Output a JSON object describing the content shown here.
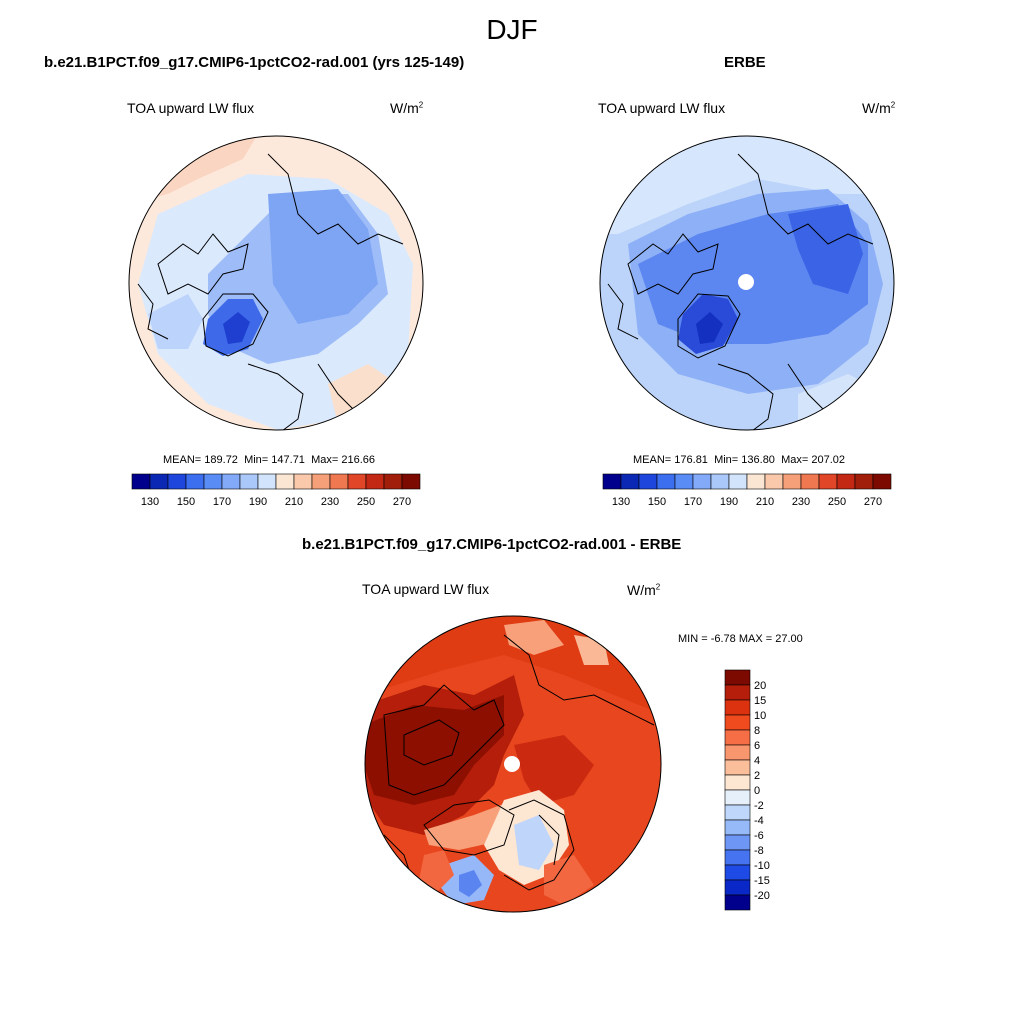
{
  "season": "DJF",
  "panels": [
    {
      "case": "b.e21.B1PCT.f09_g17.CMIP6-1pctCO2-rad.001 (yrs 125-149)",
      "variable": "TOA upward LW flux",
      "units_base": "W/m",
      "units_exp": "2",
      "mean_label": "MEAN=",
      "mean": "189.72",
      "min_label": "Min=",
      "min": "147.71",
      "max_label": "Max=",
      "max": "216.66"
    },
    {
      "case": "ERBE",
      "variable": "TOA upward LW flux",
      "units_base": "W/m",
      "units_exp": "2",
      "mean_label": "MEAN=",
      "mean": "176.81",
      "min_label": "Min=",
      "min": "136.80",
      "max_label": "Max=",
      "max": "207.02"
    },
    {
      "case": "b.e21.B1PCT.f09_g17.CMIP6-1pctCO2-rad.001 - ERBE",
      "variable": "TOA upward LW flux",
      "units_base": "W/m",
      "units_exp": "2",
      "min_label": "MIN =",
      "min": "-6.78",
      "max_label": "MAX =",
      "max": "27.00"
    }
  ],
  "abs_colorbar": {
    "labels": [
      "130",
      "150",
      "170",
      "190",
      "210",
      "230",
      "250",
      "270"
    ],
    "colors": [
      "#00008c",
      "#0a28b4",
      "#1e46dc",
      "#3c6ef0",
      "#5a8cf5",
      "#82aaf8",
      "#aac8fa",
      "#d2e4fc",
      "#fae6d2",
      "#fac8aa",
      "#f5a078",
      "#f07850",
      "#e14628",
      "#c32814",
      "#a01e0a",
      "#7d0a00"
    ]
  },
  "diff_colorbar": {
    "labels": [
      "20",
      "15",
      "10",
      "8",
      "6",
      "4",
      "2",
      "0",
      "-2",
      "-4",
      "-6",
      "-8",
      "-10",
      "-15",
      "-20"
    ],
    "colors": [
      "#7d0a00",
      "#b41e0a",
      "#dc320f",
      "#f04b1e",
      "#f56e46",
      "#f8966e",
      "#fabe9b",
      "#fde6d2",
      "#e6f0fa",
      "#bed7fa",
      "#96b9f8",
      "#6e96f5",
      "#4673f0",
      "#1e4be6",
      "#0a28c8",
      "#00008c"
    ]
  }
}
